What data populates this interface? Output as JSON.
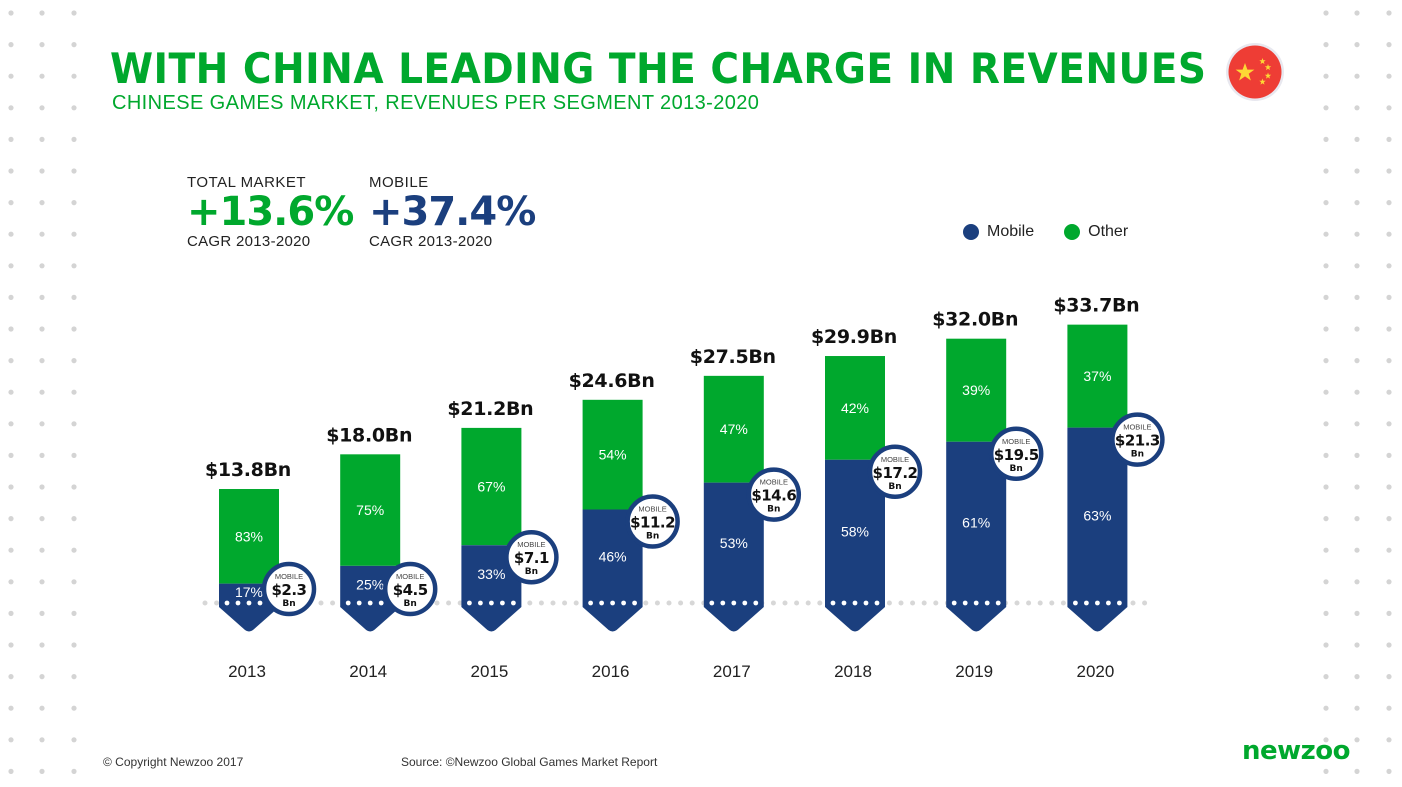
{
  "header": {
    "title": "WITH CHINA LEADING THE CHARGE IN REVENUES",
    "subtitle": "CHINESE GAMES MARKET, REVENUES PER SEGMENT 2013-2020",
    "flag_icon": "china-flag-icon"
  },
  "kpis": [
    {
      "label": "TOTAL MARKET",
      "value": "+13.6%",
      "sub": "CAGR 2013-2020",
      "color": "#00a82d"
    },
    {
      "label": "MOBILE",
      "value": "+37.4%",
      "sub": "CAGR 2013-2020",
      "color": "#1b3f7e"
    }
  ],
  "colors": {
    "mobile": "#1b3f7e",
    "other": "#00a82d",
    "brand": "#00a82d",
    "flag_red": "#ee3d35",
    "flag_star": "#fdd835",
    "dots": "#d4d4d4"
  },
  "chart_data": {
    "type": "bar",
    "stacked": true,
    "title": "CHINESE GAMES MARKET, REVENUES PER SEGMENT 2013-2020",
    "xlabel": "",
    "ylabel": "",
    "unit": "Bn USD",
    "categories": [
      "2013",
      "2014",
      "2015",
      "2016",
      "2017",
      "2018",
      "2019",
      "2020"
    ],
    "totals": [
      13.8,
      18.0,
      21.2,
      24.6,
      27.5,
      29.9,
      32.0,
      33.7
    ],
    "total_labels": [
      "$13.8Bn",
      "$18.0Bn",
      "$21.2Bn",
      "$24.6Bn",
      "$27.5Bn",
      "$29.9Bn",
      "$32.0Bn",
      "$33.7Bn"
    ],
    "series": [
      {
        "name": "Mobile",
        "values": [
          2.3,
          4.5,
          7.1,
          11.2,
          14.6,
          17.2,
          19.5,
          21.3
        ],
        "value_labels": [
          "$2.3",
          "$4.5",
          "$7.1",
          "$11.2",
          "$14.6",
          "$17.2",
          "$19.5",
          "$21.3"
        ],
        "share_labels": [
          "17%",
          "25%",
          "33%",
          "46%",
          "53%",
          "58%",
          "61%",
          "63%"
        ],
        "shares": [
          17,
          25,
          33,
          46,
          53,
          58,
          61,
          63
        ]
      },
      {
        "name": "Other",
        "values": [
          11.5,
          13.5,
          14.1,
          13.4,
          12.9,
          12.7,
          12.5,
          12.4
        ],
        "share_labels": [
          "83%",
          "75%",
          "67%",
          "54%",
          "47%",
          "42%",
          "39%",
          "37%"
        ],
        "shares": [
          83,
          75,
          67,
          54,
          47,
          42,
          39,
          37
        ]
      }
    ],
    "badge_caption": "MOBILE",
    "badge_unit": "Bn",
    "legend": [
      "Mobile",
      "Other"
    ],
    "legend_position": "top-right",
    "ylim": [
      0,
      35
    ],
    "grid": false
  },
  "footer": {
    "copyright": "© Copyright Newzoo 2017",
    "source": "Source: ©Newzoo Global Games Market Report",
    "brand": "newzoo"
  }
}
